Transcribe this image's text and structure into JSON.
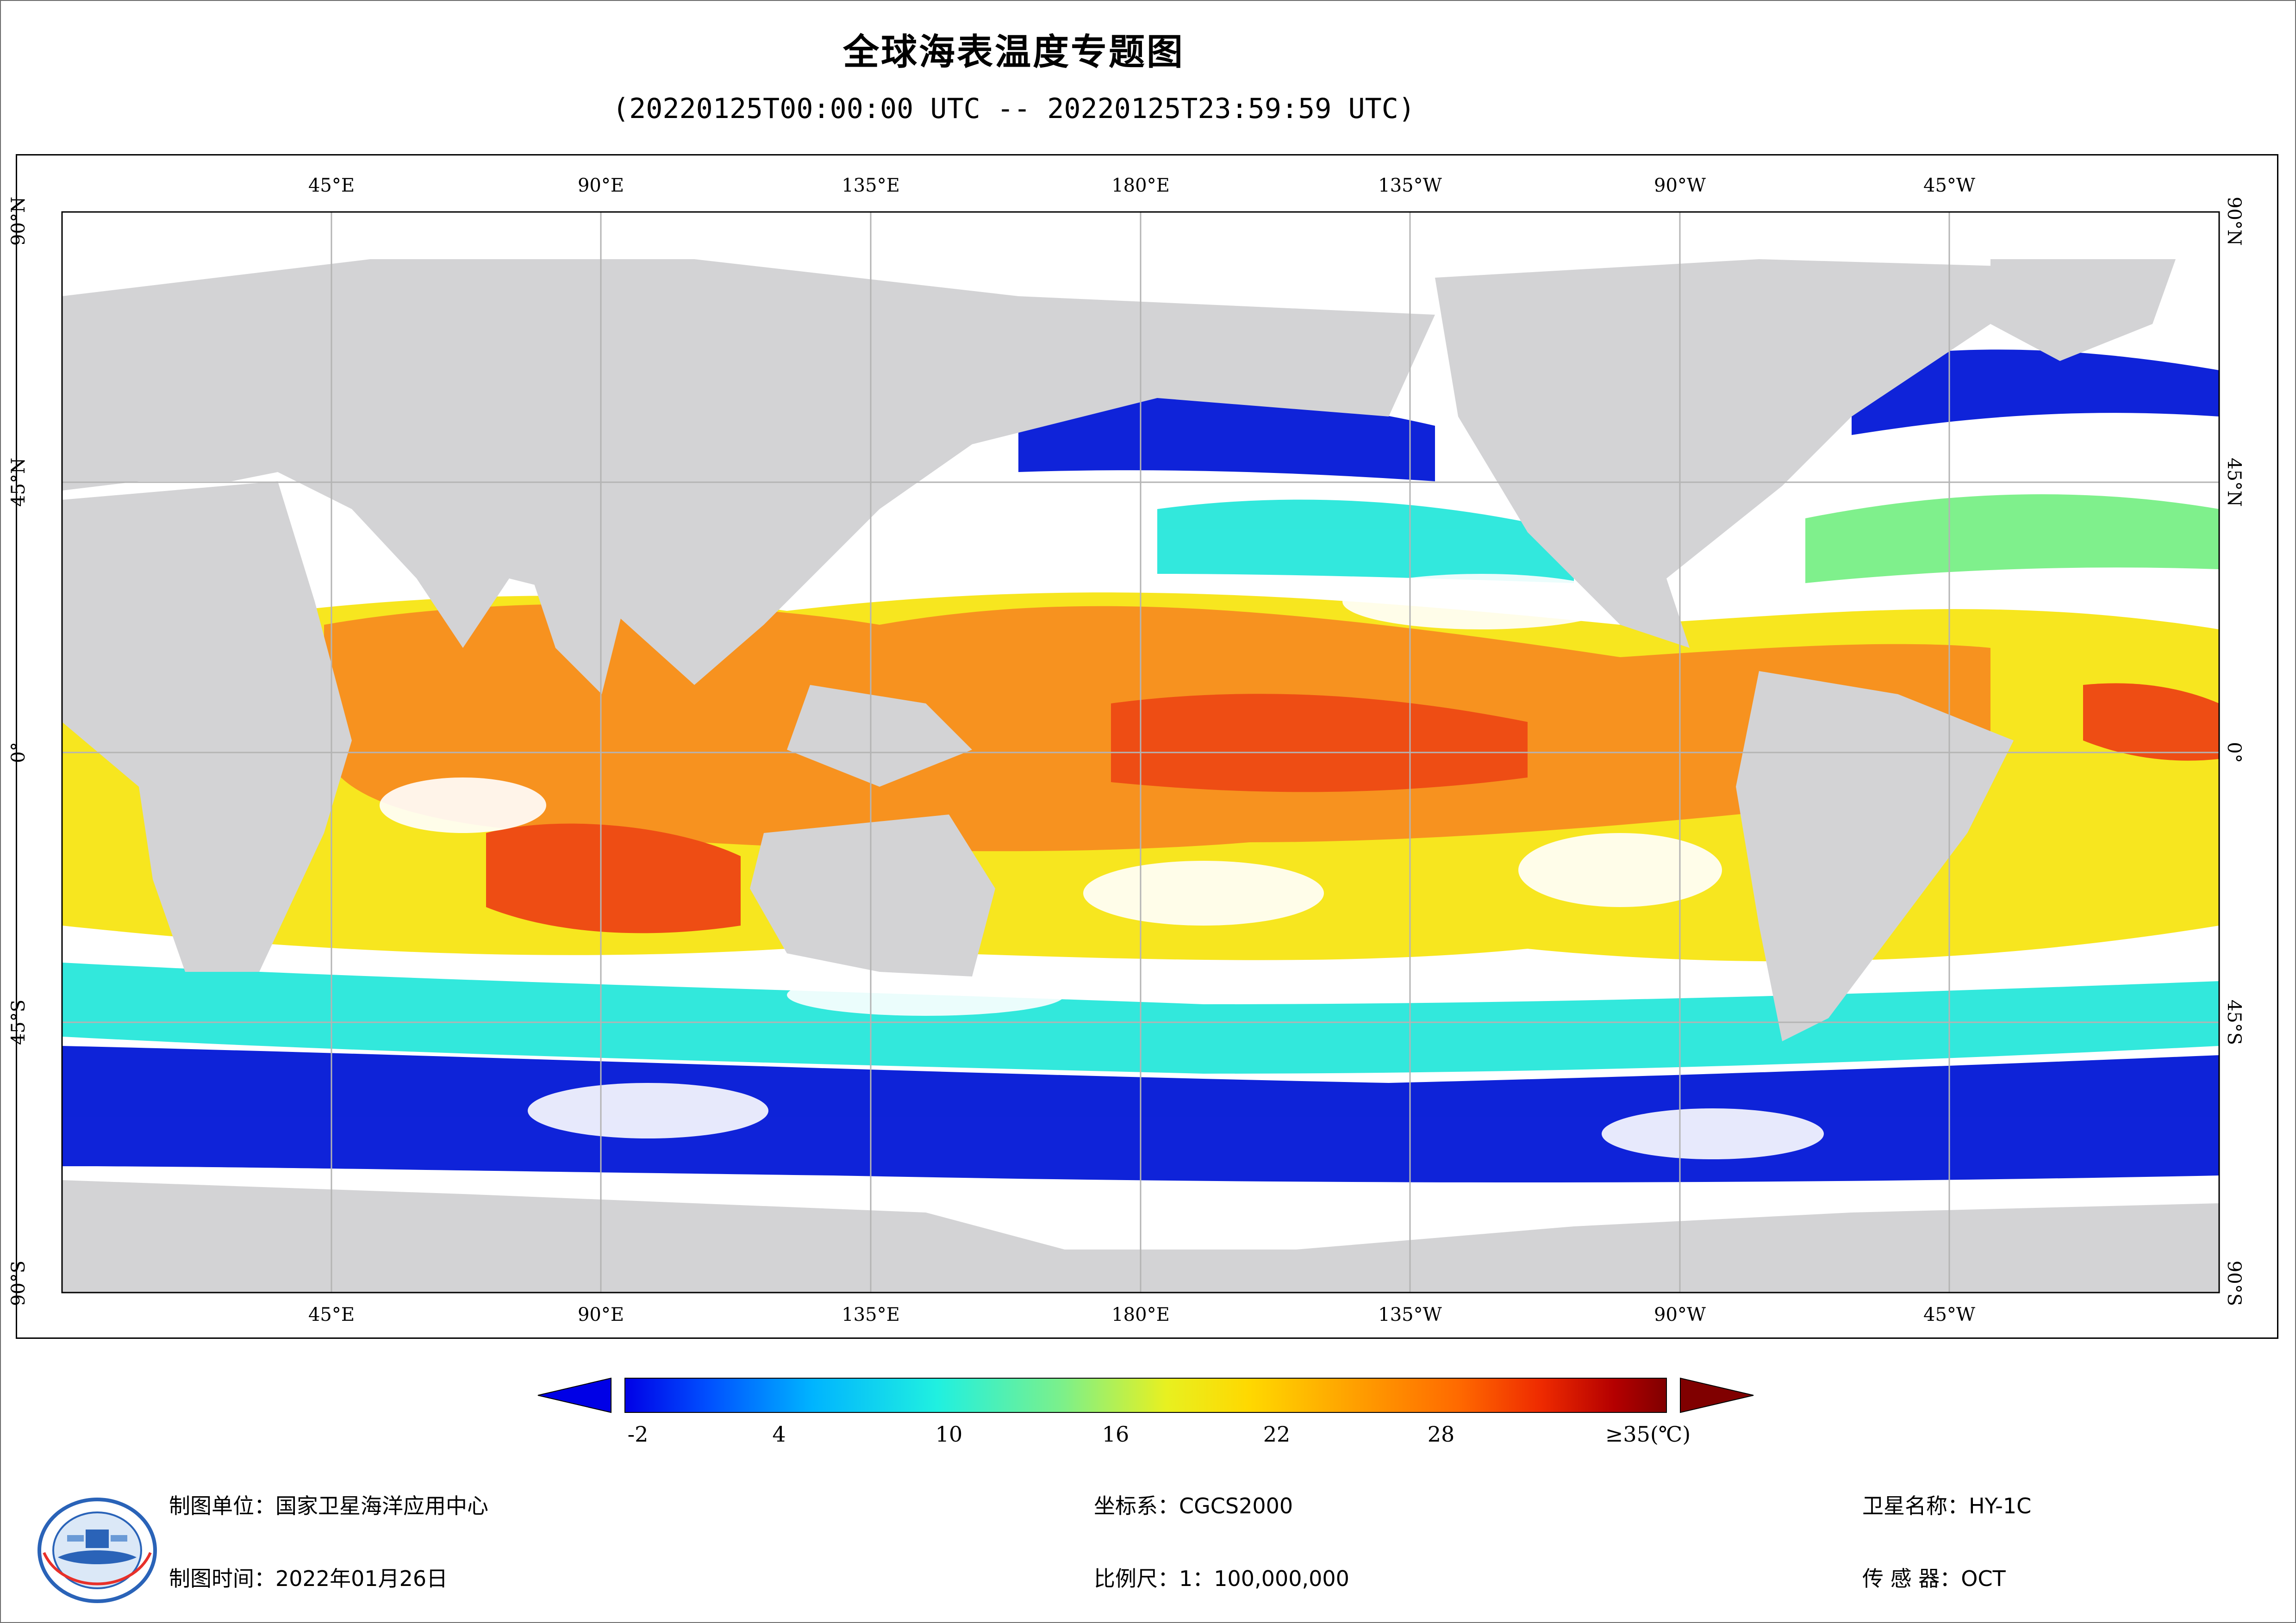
{
  "title": "全球海表温度专题图",
  "subtitle": "(20220125T00:00:00 UTC -- 20220125T23:59:59 UTC)",
  "map": {
    "top_labels": [
      "45°E",
      "90°E",
      "135°E",
      "180°E",
      "135°W",
      "90°W",
      "45°W"
    ],
    "bottom_labels": [
      "45°E",
      "90°E",
      "135°E",
      "180°E",
      "135°W",
      "90°W",
      "45°W"
    ],
    "left_labels": [
      "90°N",
      "45°N",
      "0°",
      "45°S",
      "90°S"
    ],
    "right_labels": [
      "90°N",
      "45°N",
      "0°",
      "45°S",
      "90°S"
    ],
    "colors": {
      "land": "#d3d3d5",
      "cloud": "#ffffff",
      "cold": "#0a1fd8",
      "cyan": "#2ee8dc",
      "warm_yellow": "#f7e61b",
      "orange": "#f7901b",
      "red_orange": "#ee4a10",
      "grid": "#b4b4b4"
    }
  },
  "colorbar": {
    "labels": [
      "-2",
      "4",
      "10",
      "16",
      "22",
      "28",
      "≥35(℃)"
    ],
    "range": [
      -2,
      35
    ],
    "unit": "℃",
    "stops": [
      "#0000e6",
      "#0050ff",
      "#00b4ff",
      "#20f0e0",
      "#7cf08a",
      "#e8f020",
      "#ffd800",
      "#ffa000",
      "#ff6a00",
      "#ee2a00",
      "#b40000",
      "#800000"
    ],
    "left_arrow_color": "#0000e6",
    "right_arrow_color": "#800000"
  },
  "footer": {
    "org": "制图单位：国家卫星海洋应用中心",
    "date": "制图时间：2022年01月26日",
    "crs": "坐标系：CGCS2000",
    "scale": "比例尺：1：100,000,000",
    "satellite": "卫星名称：HY-1C",
    "sensor": "传 感 器：OCT"
  },
  "logo": "logo-icon"
}
